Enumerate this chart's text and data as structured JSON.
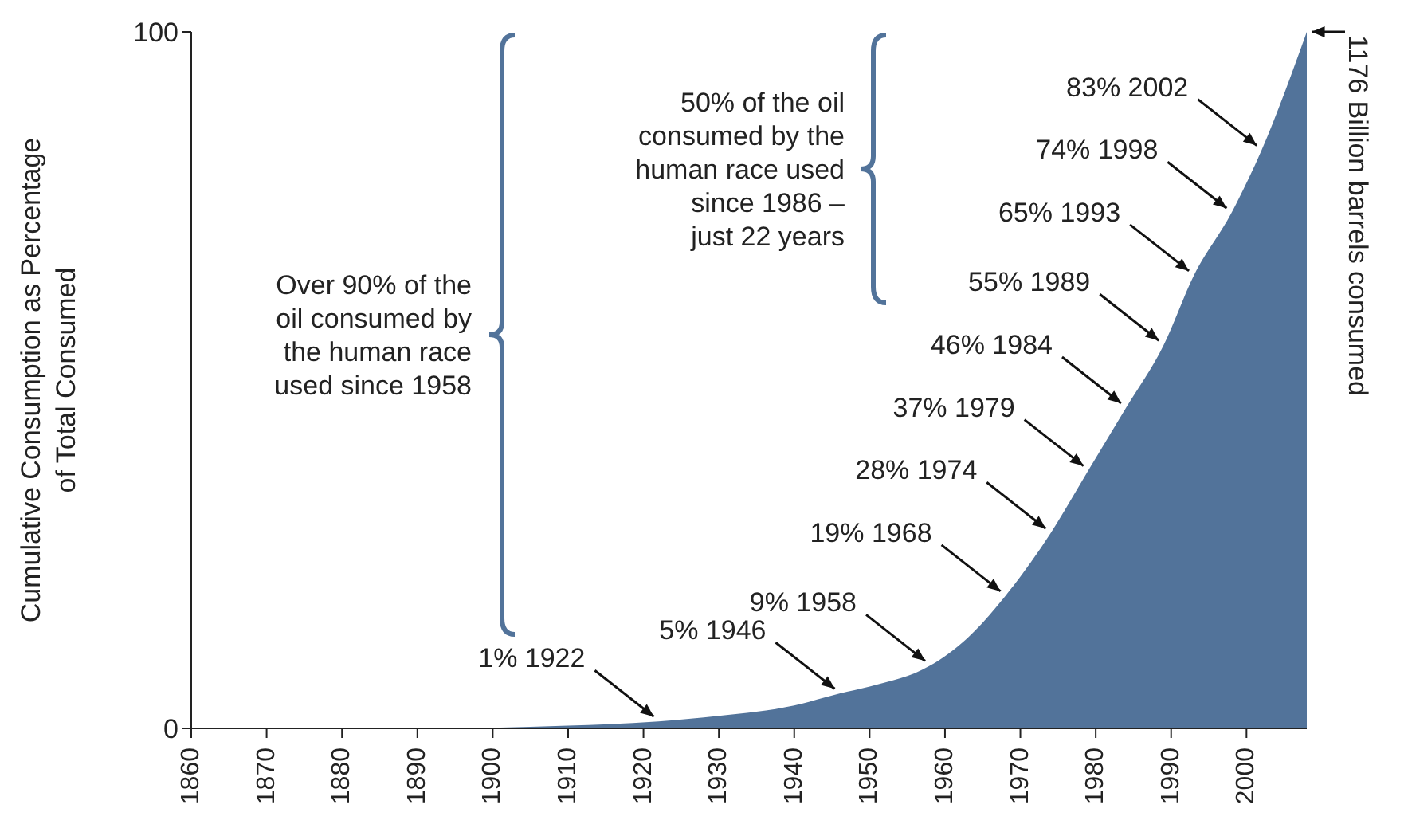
{
  "chart_data": {
    "type": "area",
    "ylabel": "Cumulative Consumption as Percentage of Total Consumed",
    "x": [
      1860,
      1870,
      1880,
      1890,
      1900,
      1910,
      1922,
      1930,
      1940,
      1946,
      1950,
      1958,
      1963,
      1968,
      1974,
      1979,
      1984,
      1989,
      1993,
      1998,
      2002,
      2008
    ],
    "values": [
      0,
      0,
      0,
      0,
      0.1,
      0.4,
      1,
      1.8,
      3.3,
      5,
      6,
      9,
      13,
      19,
      28,
      37,
      46,
      55,
      65,
      74,
      83,
      100
    ],
    "color": "#52739a",
    "xlim": [
      1860,
      2008
    ],
    "xticks": [
      1860,
      1870,
      1880,
      1890,
      1900,
      1910,
      1920,
      1930,
      1940,
      1950,
      1960,
      1970,
      1980,
      1990,
      2000
    ],
    "ylim": [
      0,
      100
    ],
    "yticks": [
      0,
      100
    ],
    "grid": false,
    "legend": false,
    "annotations": [
      {
        "text": "1% 1922",
        "x": 1922,
        "y": 1
      },
      {
        "text": "5% 1946",
        "x": 1946,
        "y": 5
      },
      {
        "text": "9% 1958",
        "x": 1958,
        "y": 9
      },
      {
        "text": "19% 1968",
        "x": 1968,
        "y": 19
      },
      {
        "text": "28% 1974",
        "x": 1974,
        "y": 28
      },
      {
        "text": "37% 1979",
        "x": 1979,
        "y": 37
      },
      {
        "text": "46% 1984",
        "x": 1984,
        "y": 46
      },
      {
        "text": "55% 1989",
        "x": 1989,
        "y": 55
      },
      {
        "text": "65% 1993",
        "x": 1993,
        "y": 65
      },
      {
        "text": "74% 1998",
        "x": 1998,
        "y": 74
      },
      {
        "text": "83% 2002",
        "x": 2002,
        "y": 83
      },
      "Over 90% of the oil consumed by the human race used since 1958",
      "50% of the oil consumed by the human race used since 1986 – just 22 years",
      "1176 Billion barrels consumed"
    ]
  }
}
